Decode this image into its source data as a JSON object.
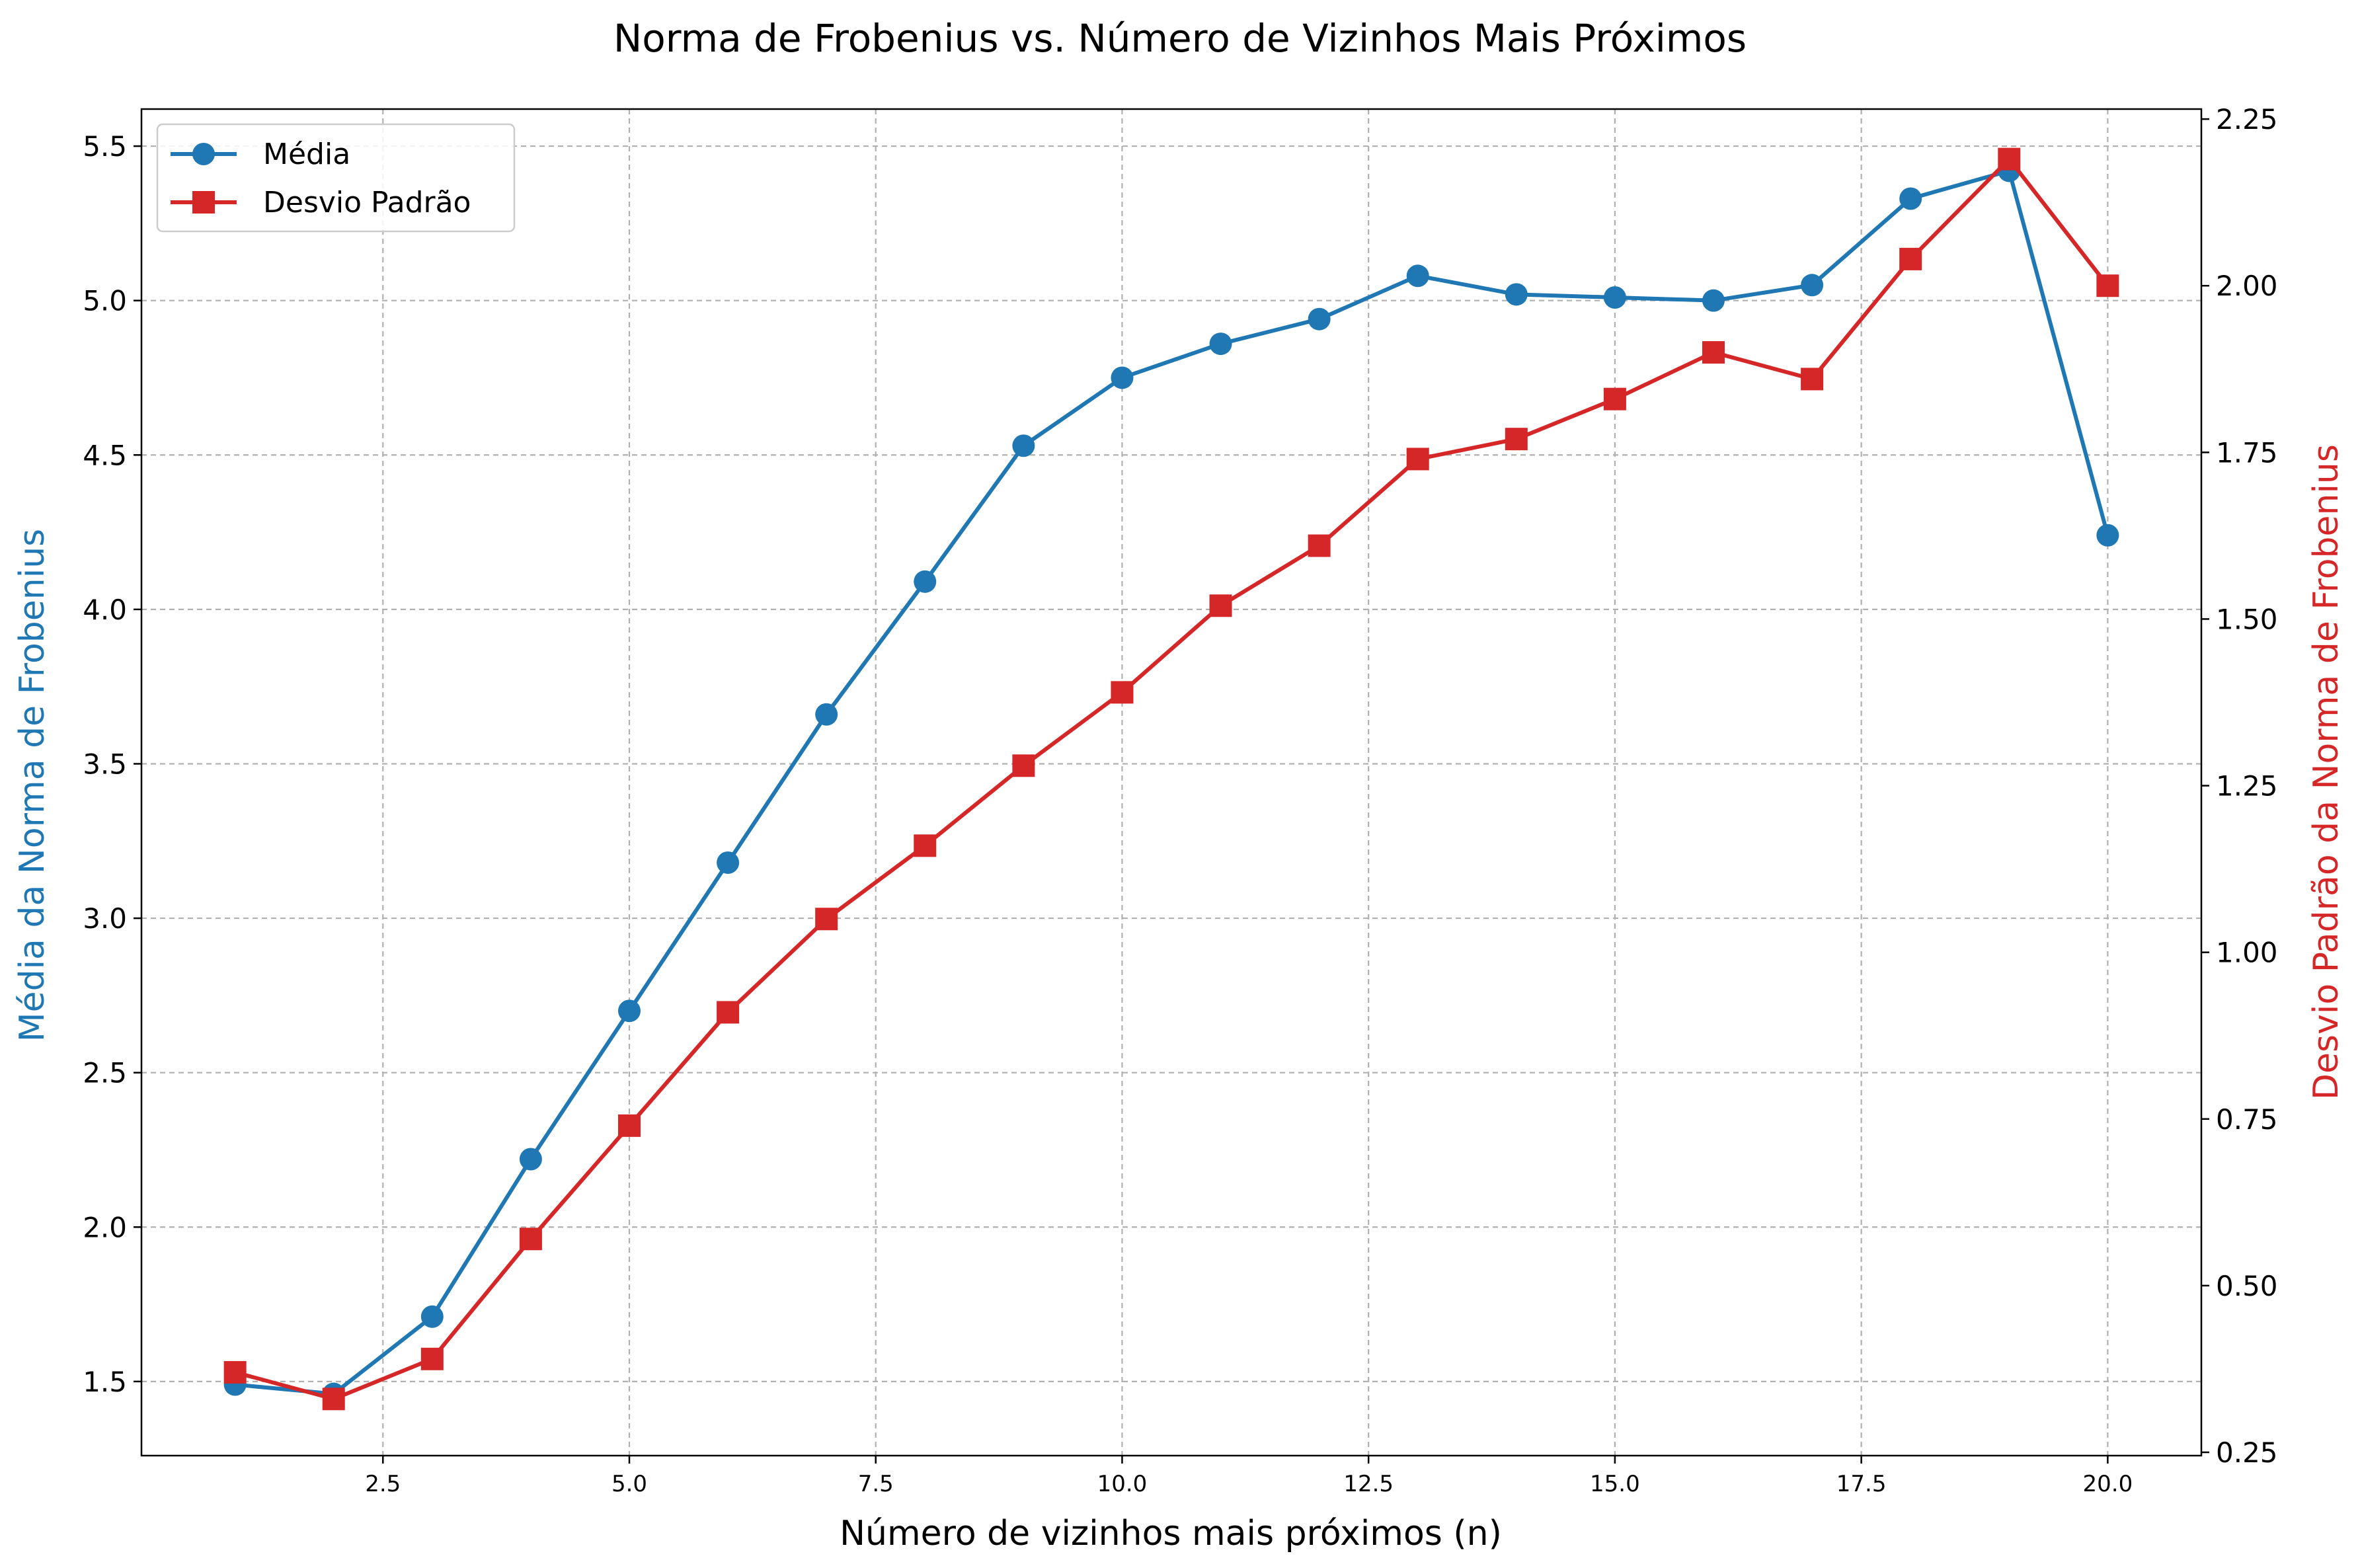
{
  "chart_data": {
    "type": "line",
    "title": "Norma de Frobenius vs. Número de Vizinhos Mais Próximos",
    "xlabel": "Número de vizinhos mais próximos (n)",
    "ylabel_left": "Média da Norma de Frobenius",
    "ylabel_right": "Desvio Padrão da Norma de Frobenius",
    "x": [
      1,
      2,
      3,
      4,
      5,
      6,
      7,
      8,
      9,
      10,
      11,
      12,
      13,
      14,
      15,
      16,
      17,
      18,
      19,
      20
    ],
    "xlim": [
      0.05,
      20.95
    ],
    "ylim_left": [
      1.26,
      5.62
    ],
    "ylim_right": [
      0.245,
      2.265
    ],
    "x_ticks": [
      "2.5",
      "5.0",
      "7.5",
      "10.0",
      "12.5",
      "15.0",
      "17.5",
      "20.0"
    ],
    "y_left_ticks": [
      "1.5",
      "2.0",
      "2.5",
      "3.0",
      "3.5",
      "4.0",
      "4.5",
      "5.0",
      "5.5"
    ],
    "y_right_ticks": [
      "0.25",
      "0.50",
      "0.75",
      "1.00",
      "1.25",
      "1.50",
      "1.75",
      "2.00",
      "2.25"
    ],
    "grid": true,
    "legend_position": "top-left",
    "series": [
      {
        "name": "Média",
        "axis": "left",
        "marker": "circle",
        "color": "#1f77b4",
        "values": [
          1.49,
          1.46,
          1.71,
          2.22,
          2.7,
          3.18,
          3.66,
          4.09,
          4.53,
          4.75,
          4.86,
          4.94,
          5.08,
          5.02,
          5.01,
          5.0,
          5.05,
          5.33,
          5.42,
          4.24
        ]
      },
      {
        "name": "Desvio Padrão",
        "axis": "right",
        "marker": "square",
        "color": "#d62728",
        "values": [
          0.37,
          0.33,
          0.39,
          0.57,
          0.74,
          0.91,
          1.05,
          1.16,
          1.28,
          1.39,
          1.52,
          1.61,
          1.74,
          1.77,
          1.83,
          1.9,
          1.86,
          2.04,
          2.19,
          2.0
        ]
      }
    ]
  }
}
